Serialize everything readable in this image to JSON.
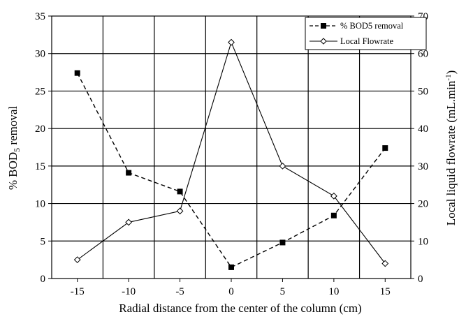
{
  "chart_data": {
    "type": "line",
    "title": "",
    "xlabel": "Radial distance from the center of the column (cm)",
    "ylabel_left": {
      "main": "% BOD",
      "sub": "5",
      "rest": " removal"
    },
    "ylabel_right": {
      "main": "Local liquid flowrate (mL.min",
      "sup": "-1",
      "rest": ")"
    },
    "x": [
      -15,
      -10,
      -5,
      0,
      5,
      10,
      15
    ],
    "xlim": [
      -17.5,
      17.5
    ],
    "x_ticks": [
      "-15",
      "-10",
      "-5",
      "0",
      "5",
      "10",
      "15"
    ],
    "ylim_left": [
      0,
      35
    ],
    "y_ticks_left": [
      "0",
      "5",
      "10",
      "15",
      "20",
      "25",
      "30",
      "35"
    ],
    "ylim_right": [
      0,
      70
    ],
    "y_ticks_right": [
      "0",
      "10",
      "20",
      "30",
      "40",
      "50",
      "60",
      "70"
    ],
    "grid": true,
    "legend_position": "top-right",
    "series": [
      {
        "name": "% BOD5 removal",
        "axis": "left",
        "line_style": "dashed",
        "marker": "filled-square",
        "values": [
          27.4,
          14.1,
          11.6,
          1.5,
          4.8,
          8.4,
          17.4
        ]
      },
      {
        "name": "Local Flowrate",
        "axis": "right",
        "line_style": "solid",
        "marker": "open-diamond",
        "values": [
          5,
          15,
          18,
          63,
          30,
          22,
          4
        ]
      }
    ]
  }
}
